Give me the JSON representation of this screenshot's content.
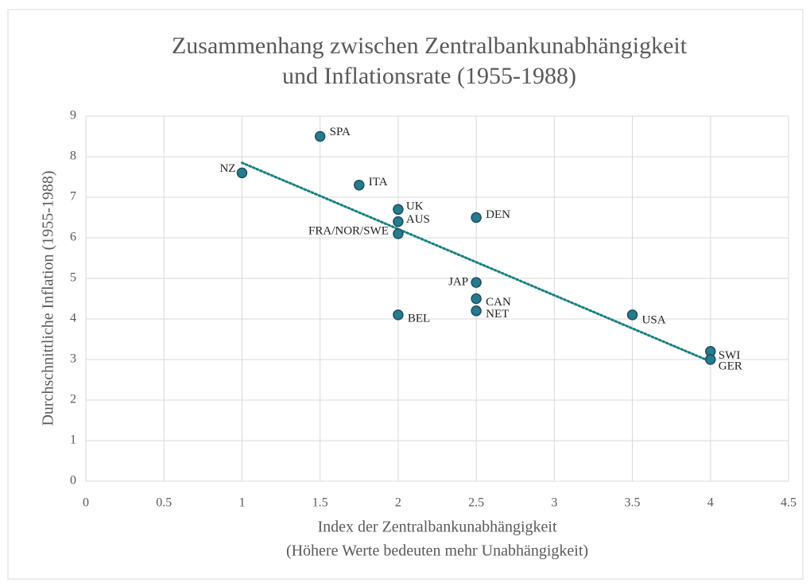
{
  "chart_data": {
    "type": "scatter",
    "title": [
      "Zusammenhang zwischen Zentralbankunabhängigkeit",
      "und Inflationsrate (1955-1988)"
    ],
    "xlabel": [
      "Index der Zentralbankunabhängigkeit",
      "(Höhere Werte bedeuten mehr Unabhängigkeit)"
    ],
    "ylabel": "Durchschnittliche Inflation (1955-1988)",
    "labels": [
      "NZ",
      "SPA",
      "ITA",
      "UK",
      "AUS",
      "FRA/NOR/SWE",
      "BEL",
      "DEN",
      "JAP",
      "CAN",
      "NET",
      "USA",
      "SWI",
      "GER"
    ],
    "x": [
      1,
      1.5,
      1.75,
      2,
      2,
      2,
      2,
      2.5,
      2.5,
      2.5,
      2.5,
      3.5,
      4,
      4
    ],
    "y": [
      7.6,
      8.5,
      7.3,
      6.7,
      6.4,
      6.1,
      4.1,
      6.5,
      4.9,
      4.5,
      4.2,
      4.1,
      3.2,
      3.0
    ],
    "color": "#267b8f",
    "trendline": {
      "x": [
        1,
        4
      ],
      "y": [
        7.85,
        2.95
      ],
      "color": "#1a8080"
    },
    "xlim": [
      0,
      4.5
    ],
    "xticks": [
      0,
      0.5,
      1,
      1.5,
      2,
      2.5,
      3,
      3.5,
      4,
      4.5
    ],
    "ylim": [
      0,
      9
    ],
    "yticks": [
      0,
      1,
      2,
      3,
      4,
      5,
      6,
      7,
      8,
      9
    ],
    "grid": true
  }
}
